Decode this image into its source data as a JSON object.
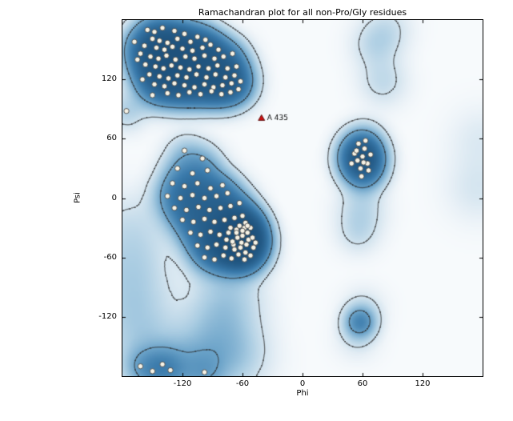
{
  "chart_data": {
    "type": "scatter",
    "title": "Ramachandran plot for all non-Pro/Gly residues",
    "xlabel": "Phi",
    "ylabel": "Psi",
    "xlim": [
      -180,
      180
    ],
    "ylim": [
      -180,
      180
    ],
    "xticks": [
      -120,
      -60,
      0,
      60,
      120
    ],
    "yticks": [
      120,
      60,
      0,
      -60,
      -120
    ],
    "grid": false,
    "marker": {
      "fill": "#f7f3e6",
      "edge": "#3a3a3a",
      "radius": 3.2
    },
    "outlier": {
      "phi": -41,
      "psi": 81,
      "label": "A 435",
      "color": "#cc1111",
      "edge": "#440000"
    },
    "points": [
      [
        -155,
        170
      ],
      [
        -148,
        168
      ],
      [
        -140,
        172
      ],
      [
        -128,
        169
      ],
      [
        -118,
        166
      ],
      [
        -150,
        161
      ],
      [
        -143,
        159
      ],
      [
        -135,
        157
      ],
      [
        -125,
        161
      ],
      [
        -112,
        158
      ],
      [
        -105,
        163
      ],
      [
        -97,
        160
      ],
      [
        -158,
        154
      ],
      [
        -146,
        152
      ],
      [
        -138,
        150
      ],
      [
        -130,
        153
      ],
      [
        -120,
        151
      ],
      [
        -110,
        149
      ],
      [
        -100,
        152
      ],
      [
        -92,
        155
      ],
      [
        -84,
        150
      ],
      [
        -162,
        146
      ],
      [
        -152,
        143
      ],
      [
        -144,
        141
      ],
      [
        -136,
        144
      ],
      [
        -127,
        140
      ],
      [
        -117,
        143
      ],
      [
        -108,
        141
      ],
      [
        -98,
        144
      ],
      [
        -88,
        141
      ],
      [
        -79,
        143
      ],
      [
        -70,
        146
      ],
      [
        -157,
        135
      ],
      [
        -147,
        133
      ],
      [
        -139,
        131
      ],
      [
        -131,
        134
      ],
      [
        -122,
        132
      ],
      [
        -113,
        130
      ],
      [
        -104,
        133
      ],
      [
        -94,
        131
      ],
      [
        -85,
        134
      ],
      [
        -75,
        131
      ],
      [
        -66,
        133
      ],
      [
        -153,
        125
      ],
      [
        -143,
        123
      ],
      [
        -134,
        121
      ],
      [
        -125,
        124
      ],
      [
        -116,
        122
      ],
      [
        -106,
        125
      ],
      [
        -96,
        122
      ],
      [
        -87,
        125
      ],
      [
        -77,
        122
      ],
      [
        -68,
        124
      ],
      [
        -148,
        115
      ],
      [
        -138,
        113
      ],
      [
        -128,
        116
      ],
      [
        -118,
        114
      ],
      [
        -108,
        112
      ],
      [
        -98,
        115
      ],
      [
        -89,
        112
      ],
      [
        -80,
        114
      ],
      [
        -71,
        116
      ],
      [
        -62,
        118
      ],
      [
        -135,
        106
      ],
      [
        -124,
        104
      ],
      [
        -113,
        107
      ],
      [
        -102,
        105
      ],
      [
        -91,
        108
      ],
      [
        -81,
        105
      ],
      [
        -72,
        107
      ],
      [
        -64,
        110
      ],
      [
        -150,
        104
      ],
      [
        -160,
        120
      ],
      [
        -165,
        140
      ],
      [
        -168,
        158
      ],
      [
        -118,
        48
      ],
      [
        -100,
        40
      ],
      [
        -125,
        30
      ],
      [
        -110,
        25
      ],
      [
        -95,
        28
      ],
      [
        -130,
        15
      ],
      [
        -118,
        12
      ],
      [
        -105,
        15
      ],
      [
        -92,
        10
      ],
      [
        -80,
        13
      ],
      [
        -135,
        2
      ],
      [
        -122,
        0
      ],
      [
        -110,
        3
      ],
      [
        -98,
        0
      ],
      [
        -86,
        2
      ],
      [
        -75,
        5
      ],
      [
        -128,
        -10
      ],
      [
        -116,
        -12
      ],
      [
        -104,
        -9
      ],
      [
        -93,
        -12
      ],
      [
        -82,
        -10
      ],
      [
        -72,
        -8
      ],
      [
        -63,
        -5
      ],
      [
        -120,
        -22
      ],
      [
        -109,
        -24
      ],
      [
        -98,
        -21
      ],
      [
        -88,
        -24
      ],
      [
        -78,
        -22
      ],
      [
        -68,
        -20
      ],
      [
        -60,
        -18
      ],
      [
        -112,
        -35
      ],
      [
        -102,
        -37
      ],
      [
        -92,
        -34
      ],
      [
        -83,
        -37
      ],
      [
        -74,
        -35
      ],
      [
        -66,
        -32
      ],
      [
        -58,
        -30
      ],
      [
        -105,
        -48
      ],
      [
        -95,
        -50
      ],
      [
        -86,
        -47
      ],
      [
        -77,
        -50
      ],
      [
        -69,
        -47
      ],
      [
        -61,
        -45
      ],
      [
        -54,
        -42
      ],
      [
        -98,
        -60
      ],
      [
        -88,
        -62
      ],
      [
        -79,
        -58
      ],
      [
        -71,
        -61
      ],
      [
        -64,
        -57
      ],
      [
        -57,
        -55
      ],
      [
        -76,
        -42
      ],
      [
        -70,
        -44
      ],
      [
        -65,
        -40
      ],
      [
        -60,
        -38
      ],
      [
        -56,
        -47
      ],
      [
        -62,
        -50
      ],
      [
        -68,
        -52
      ],
      [
        -58,
        -62
      ],
      [
        -52,
        -58
      ],
      [
        -49,
        -50
      ],
      [
        -55,
        -35
      ],
      [
        -50,
        -40
      ],
      [
        -47,
        -45
      ],
      [
        -63,
        -28
      ],
      [
        -57,
        -25
      ],
      [
        -52,
        -30
      ],
      [
        -66,
        -35
      ],
      [
        -72,
        -30
      ],
      [
        -60,
        -33
      ],
      [
        -55,
        -28
      ],
      [
        55,
        38
      ],
      [
        60,
        42
      ],
      [
        65,
        35
      ],
      [
        58,
        30
      ],
      [
        52,
        45
      ],
      [
        62,
        50
      ],
      [
        68,
        44
      ],
      [
        56,
        55
      ],
      [
        63,
        58
      ],
      [
        49,
        35
      ],
      [
        59,
        22
      ],
      [
        66,
        28
      ],
      [
        54,
        48
      ],
      [
        61,
        36
      ],
      [
        -176,
        88
      ],
      [
        -162,
        -170
      ],
      [
        -150,
        -175
      ],
      [
        -140,
        -168
      ],
      [
        -132,
        -174
      ],
      [
        -98,
        -176
      ]
    ],
    "density": {
      "point_sigma": 13,
      "softness": 0.28,
      "thresholds": [
        0.15,
        0.5
      ],
      "contour_color": "#2b2b2b",
      "colormap": [
        [
          0.0,
          "#f7fafc"
        ],
        [
          0.06,
          "#e9f1f7"
        ],
        [
          0.15,
          "#d3e4ef"
        ],
        [
          0.3,
          "#a9cce2"
        ],
        [
          0.5,
          "#6ba3c9"
        ],
        [
          0.72,
          "#3a7aab"
        ],
        [
          1.0,
          "#1c4f79"
        ]
      ],
      "extra_centers": [
        [
          -130,
          145,
          1.8,
          18
        ],
        [
          -65,
          -45,
          1.4,
          12
        ],
        [
          60,
          41,
          1.0,
          11
        ],
        [
          -75,
          -95,
          1.0,
          24
        ],
        [
          -85,
          -130,
          1.0,
          24
        ],
        [
          -70,
          -160,
          1.2,
          24
        ],
        [
          -110,
          -168,
          1.4,
          22
        ],
        [
          -150,
          -165,
          1.2,
          24
        ],
        [
          -168,
          -120,
          1.0,
          26
        ],
        [
          -172,
          -75,
          0.9,
          26
        ],
        [
          -170,
          -30,
          0.7,
          26
        ],
        [
          72,
          155,
          0.8,
          16
        ],
        [
          80,
          118,
          0.8,
          16
        ],
        [
          85,
          172,
          0.6,
          16
        ],
        [
          58,
          -10,
          0.9,
          16
        ],
        [
          55,
          -35,
          0.7,
          14
        ],
        [
          57,
          -125,
          3.2,
          10
        ],
        [
          60,
          -112,
          0.7,
          14
        ],
        [
          54,
          -140,
          0.6,
          14
        ],
        [
          175,
          10,
          0.5,
          22
        ],
        [
          178,
          60,
          0.4,
          22
        ]
      ]
    }
  }
}
